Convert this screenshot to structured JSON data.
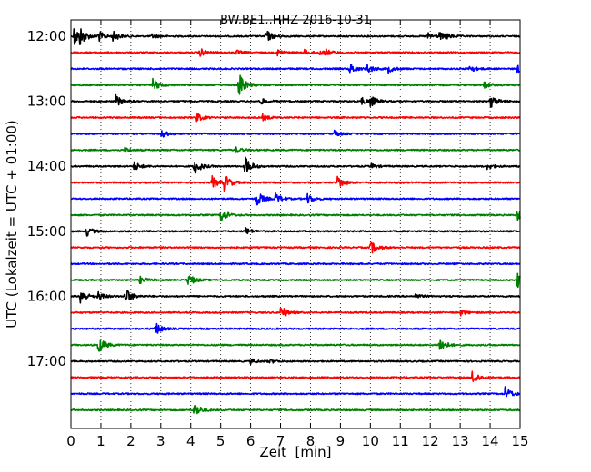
{
  "chart_data": {
    "type": "line",
    "title": "BW.BE1..HHZ 2016-10-31",
    "xlabel": "Zeit  [min]",
    "ylabel": "UTC (Lokalzeit = UTC + 01:00)",
    "xlim": [
      0,
      15
    ],
    "x_ticks": [
      0,
      1,
      2,
      3,
      4,
      5,
      6,
      7,
      8,
      9,
      10,
      11,
      12,
      13,
      14,
      15
    ],
    "x_tick_labels": [
      "0",
      "1",
      "2",
      "3",
      "4",
      "5",
      "6",
      "7",
      "8",
      "9",
      "10",
      "11",
      "12",
      "13",
      "14",
      "15"
    ],
    "y_tick_labels": [
      "12:00",
      "13:00",
      "14:00",
      "15:00",
      "16:00",
      "17:00"
    ],
    "y_tick_rows": [
      0,
      4,
      8,
      12,
      16,
      20
    ],
    "grid": "vertical dotted",
    "row_colors": [
      "#000000",
      "#ff0000",
      "#0000ff",
      "#008000"
    ],
    "series": [
      {
        "start": "12:00",
        "color": "#000000",
        "events": [
          [
            0.1,
            0.9
          ],
          [
            0.3,
            0.6
          ],
          [
            0.9,
            0.5
          ],
          [
            1.4,
            0.4
          ],
          [
            2.7,
            0.2
          ],
          [
            6.5,
            0.6
          ],
          [
            11.9,
            0.3
          ],
          [
            12.3,
            0.3
          ],
          [
            12.5,
            0.2
          ]
        ]
      },
      {
        "start": "12:15",
        "color": "#ff0000",
        "events": [
          [
            4.3,
            0.35
          ],
          [
            5.5,
            0.2
          ],
          [
            6.9,
            0.25
          ],
          [
            7.8,
            0.2
          ],
          [
            8.3,
            0.25
          ],
          [
            8.5,
            0.2
          ]
        ]
      },
      {
        "start": "12:30",
        "color": "#0000ff",
        "events": [
          [
            9.3,
            0.5
          ],
          [
            9.9,
            0.35
          ],
          [
            10.6,
            0.3
          ],
          [
            13.3,
            0.35
          ],
          [
            14.9,
            0.35
          ]
        ]
      },
      {
        "start": "12:45",
        "color": "#008000",
        "events": [
          [
            2.7,
            0.6
          ],
          [
            5.6,
            1.0
          ],
          [
            13.8,
            0.3
          ]
        ]
      },
      {
        "start": "13:00",
        "color": "#000000",
        "events": [
          [
            1.5,
            0.5
          ],
          [
            6.3,
            0.3
          ],
          [
            9.7,
            0.3
          ],
          [
            10.0,
            0.45
          ],
          [
            14.0,
            0.6
          ]
        ]
      },
      {
        "start": "13:15",
        "color": "#ff0000",
        "events": [
          [
            4.2,
            0.35
          ],
          [
            6.4,
            0.25
          ]
        ]
      },
      {
        "start": "13:30",
        "color": "#0000ff",
        "events": [
          [
            3.0,
            0.4
          ],
          [
            8.8,
            0.25
          ]
        ]
      },
      {
        "start": "13:45",
        "color": "#008000",
        "events": [
          [
            1.8,
            0.2
          ],
          [
            5.5,
            0.25
          ]
        ]
      },
      {
        "start": "14:00",
        "color": "#000000",
        "events": [
          [
            2.1,
            0.4
          ],
          [
            4.1,
            0.8
          ],
          [
            5.8,
            0.9
          ],
          [
            10.0,
            0.25
          ],
          [
            13.9,
            0.25
          ]
        ]
      },
      {
        "start": "14:15",
        "color": "#ff0000",
        "events": [
          [
            4.7,
            0.6
          ],
          [
            5.1,
            0.75
          ],
          [
            8.9,
            0.6
          ]
        ]
      },
      {
        "start": "14:30",
        "color": "#0000ff",
        "events": [
          [
            6.2,
            0.7
          ],
          [
            6.8,
            0.5
          ],
          [
            7.9,
            0.4
          ]
        ]
      },
      {
        "start": "14:45",
        "color": "#008000",
        "events": [
          [
            5.0,
            0.65
          ],
          [
            14.9,
            0.45
          ]
        ]
      },
      {
        "start": "15:00",
        "color": "#000000",
        "events": [
          [
            0.5,
            0.45
          ],
          [
            5.8,
            0.35
          ]
        ]
      },
      {
        "start": "15:15",
        "color": "#ff0000",
        "events": [
          [
            10.0,
            0.6
          ]
        ]
      },
      {
        "start": "15:30",
        "color": "#0000ff",
        "events": []
      },
      {
        "start": "15:45",
        "color": "#008000",
        "events": [
          [
            2.3,
            0.3
          ],
          [
            3.9,
            0.6
          ],
          [
            14.9,
            0.7
          ]
        ]
      },
      {
        "start": "16:00",
        "color": "#000000",
        "events": [
          [
            0.3,
            0.7
          ],
          [
            0.9,
            0.4
          ],
          [
            1.8,
            0.8
          ],
          [
            11.5,
            0.2
          ]
        ]
      },
      {
        "start": "16:15",
        "color": "#ff0000",
        "events": [
          [
            7.0,
            0.6
          ],
          [
            13.0,
            0.25
          ]
        ]
      },
      {
        "start": "16:30",
        "color": "#0000ff",
        "events": [
          [
            2.8,
            0.6
          ]
        ]
      },
      {
        "start": "16:45",
        "color": "#008000",
        "events": [
          [
            0.9,
            0.8
          ],
          [
            12.3,
            0.7
          ]
        ]
      },
      {
        "start": "17:00",
        "color": "#000000",
        "events": [
          [
            6.0,
            0.2
          ],
          [
            6.6,
            0.2
          ]
        ]
      },
      {
        "start": "17:15",
        "color": "#ff0000",
        "events": [
          [
            13.4,
            0.65
          ]
        ]
      },
      {
        "start": "17:30",
        "color": "#0000ff",
        "events": [
          [
            14.5,
            0.6
          ]
        ]
      },
      {
        "start": "17:45",
        "color": "#008000",
        "events": [
          [
            4.1,
            0.7
          ]
        ]
      }
    ]
  }
}
